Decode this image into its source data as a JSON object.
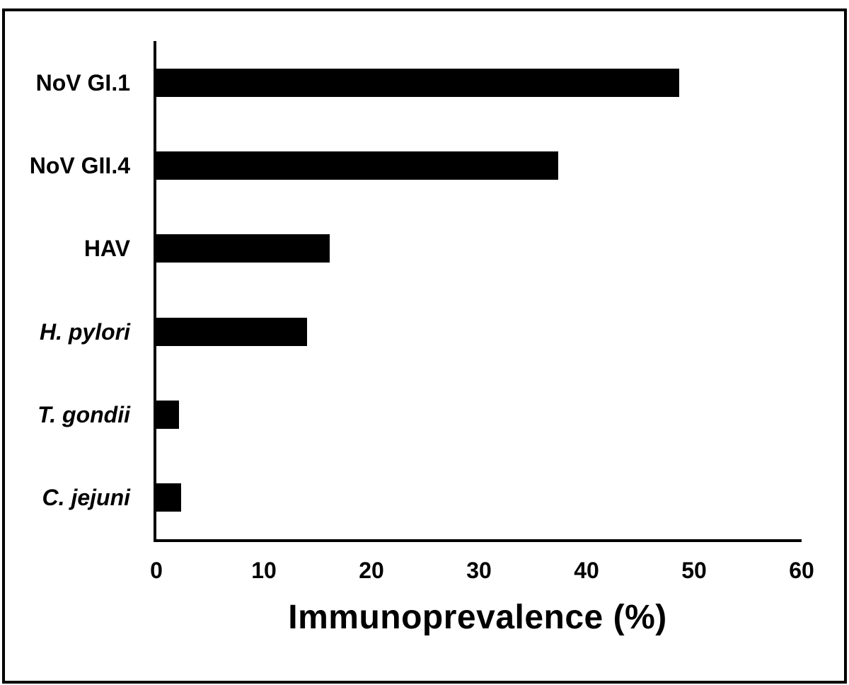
{
  "figure": {
    "background": "#ffffff",
    "border_color": "#000000",
    "bar_color": "#000000",
    "text_color": "#000000"
  },
  "chart_data": {
    "type": "bar",
    "orientation": "horizontal",
    "title": "",
    "xlabel": "Immunoprevalence (%)",
    "ylabel": "",
    "categories": [
      "NoV GI.1",
      "NoV GII.4",
      "HAV",
      "H. pylori",
      "T. gondii",
      "C. jejuni"
    ],
    "italic_categories": [
      false,
      false,
      false,
      true,
      true,
      true
    ],
    "values": [
      48.6,
      37.4,
      16.1,
      14.0,
      2.1,
      2.3
    ],
    "xlim": [
      0,
      60
    ],
    "xticks": [
      0,
      10,
      20,
      30,
      40,
      50,
      60
    ],
    "grid": false,
    "legend": "none"
  }
}
